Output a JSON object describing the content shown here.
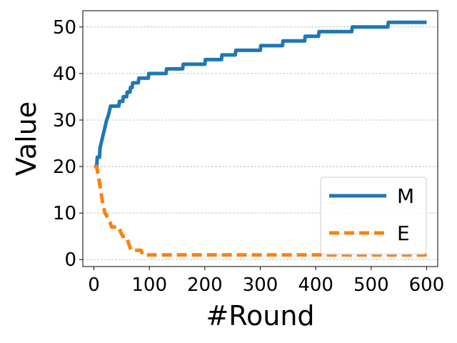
{
  "chart_data": {
    "type": "line",
    "title": "",
    "xlabel": "#Round",
    "ylabel": "Value",
    "xlim": [
      -20,
      620
    ],
    "ylim": [
      -1.5,
      53.5
    ],
    "x_ticks": [
      0,
      100,
      200,
      300,
      400,
      500,
      600
    ],
    "y_ticks": [
      0,
      10,
      20,
      30,
      40,
      50
    ],
    "grid": "horizontal-dashed",
    "legend_position": "bottom-right",
    "series": [
      {
        "name": "M",
        "color": "#1f77b4",
        "style": "solid",
        "points": [
          [
            0,
            20
          ],
          [
            5,
            20
          ],
          [
            6,
            22
          ],
          [
            10,
            22
          ],
          [
            11,
            24
          ],
          [
            13,
            25
          ],
          [
            15,
            26
          ],
          [
            17,
            27
          ],
          [
            19,
            28
          ],
          [
            21,
            29
          ],
          [
            23,
            30
          ],
          [
            26,
            31
          ],
          [
            28,
            32
          ],
          [
            30,
            33
          ],
          [
            45,
            33
          ],
          [
            46,
            34
          ],
          [
            52,
            34
          ],
          [
            53,
            35
          ],
          [
            59,
            35
          ],
          [
            60,
            36
          ],
          [
            65,
            36
          ],
          [
            66,
            37
          ],
          [
            69,
            37
          ],
          [
            70,
            38
          ],
          [
            80,
            38
          ],
          [
            81,
            39
          ],
          [
            98,
            39
          ],
          [
            99,
            40
          ],
          [
            130,
            40
          ],
          [
            131,
            41
          ],
          [
            160,
            41
          ],
          [
            161,
            42
          ],
          [
            200,
            42
          ],
          [
            201,
            43
          ],
          [
            230,
            43
          ],
          [
            231,
            44
          ],
          [
            255,
            44
          ],
          [
            256,
            45
          ],
          [
            300,
            45
          ],
          [
            301,
            46
          ],
          [
            340,
            46
          ],
          [
            341,
            47
          ],
          [
            380,
            47
          ],
          [
            381,
            48
          ],
          [
            405,
            48
          ],
          [
            406,
            49
          ],
          [
            465,
            49
          ],
          [
            466,
            50
          ],
          [
            530,
            50
          ],
          [
            531,
            51
          ],
          [
            600,
            51
          ]
        ]
      },
      {
        "name": "E",
        "color": "#ff7f0e",
        "style": "dashed",
        "points": [
          [
            0,
            20
          ],
          [
            5,
            20
          ],
          [
            8,
            18
          ],
          [
            12,
            15
          ],
          [
            16,
            12
          ],
          [
            20,
            10
          ],
          [
            25,
            9
          ],
          [
            29,
            8
          ],
          [
            32,
            7
          ],
          [
            45,
            7
          ],
          [
            48,
            6
          ],
          [
            52,
            5
          ],
          [
            58,
            5
          ],
          [
            61,
            4
          ],
          [
            64,
            3
          ],
          [
            67,
            2
          ],
          [
            85,
            2
          ],
          [
            88,
            1
          ],
          [
            600,
            1
          ]
        ]
      }
    ]
  }
}
